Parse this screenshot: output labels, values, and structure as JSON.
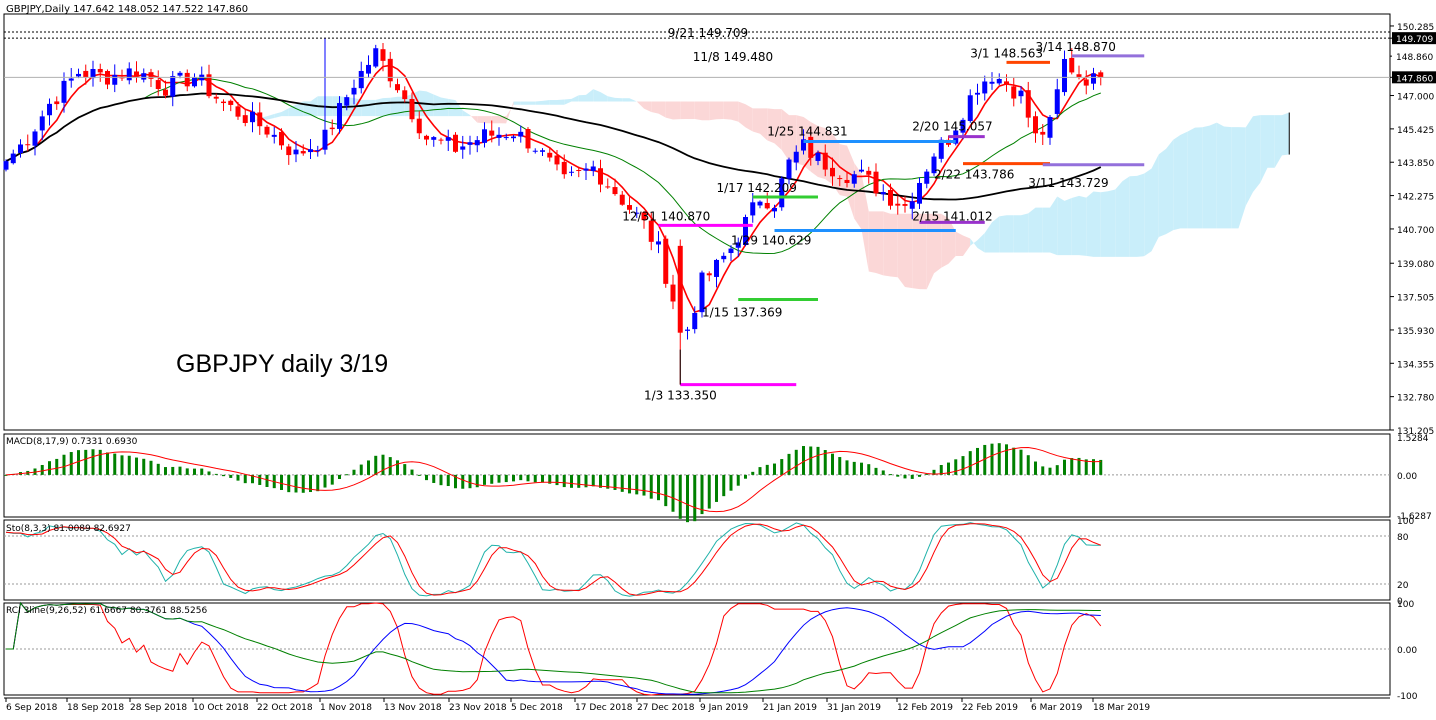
{
  "header": {
    "symbol_line": "GBPJPY,Daily  147.642 148.052 147.522 147.860"
  },
  "chart_data": [
    {
      "type": "candlestick",
      "panel": "price",
      "title": "GBPJPY daily 3/19",
      "ylim": [
        131.205,
        150.85
      ],
      "y_ticks": [
        "150.285",
        "149.709",
        "148.860",
        "147.860",
        "147.000",
        "145.425",
        "143.850",
        "142.275",
        "140.700",
        "139.080",
        "137.505",
        "135.930",
        "134.355",
        "132.780",
        "131.205"
      ],
      "current_price": "147.860",
      "x_tick_labels": [
        "6 Sep 2018",
        "18 Sep 2018",
        "28 Sep 2018",
        "10 Oct 2018",
        "22 Oct 2018",
        "1 Nov 2018",
        "13 Nov 2018",
        "23 Nov 2018",
        "5 Dec 2018",
        "17 Dec 2018",
        "27 Dec 2018",
        "9 Jan 2019",
        "21 Jan 2019",
        "31 Jan 2019",
        "12 Feb 2019",
        "22 Feb 2019",
        "6 Mar 2019",
        "18 Mar 2019"
      ],
      "close_anchors": [
        [
          0,
          143.9
        ],
        [
          3,
          145.0
        ],
        [
          6,
          146.6
        ],
        [
          10,
          148.1
        ],
        [
          14,
          147.9
        ],
        [
          18,
          148.2
        ],
        [
          22,
          147.4
        ],
        [
          26,
          147.9
        ],
        [
          30,
          146.6
        ],
        [
          33,
          146.0
        ],
        [
          36,
          145.4
        ],
        [
          40,
          144.2
        ],
        [
          44,
          145.0
        ],
        [
          48,
          147.6
        ],
        [
          51,
          149.0
        ],
        [
          54,
          147.5
        ],
        [
          58,
          145.0
        ],
        [
          62,
          144.5
        ],
        [
          66,
          145.1
        ],
        [
          70,
          145.3
        ],
        [
          73,
          144.6
        ],
        [
          77,
          142.9
        ],
        [
          81,
          143.6
        ],
        [
          85,
          142.1
        ],
        [
          88,
          140.9
        ],
        [
          90,
          139.7
        ],
        [
          92,
          137.4
        ],
        [
          94,
          136.0
        ],
        [
          96,
          138.2
        ],
        [
          98,
          138.9
        ],
        [
          100,
          139.8
        ],
        [
          102,
          141.0
        ],
        [
          104,
          142.2
        ],
        [
          106,
          142.0
        ],
        [
          108,
          143.8
        ],
        [
          110,
          144.6
        ],
        [
          112,
          144.0
        ],
        [
          114,
          143.6
        ],
        [
          116,
          143.3
        ],
        [
          118,
          143.2
        ],
        [
          120,
          142.7
        ],
        [
          122,
          142.2
        ],
        [
          124,
          141.8
        ],
        [
          126,
          143.0
        ],
        [
          128,
          144.3
        ],
        [
          130,
          145.0
        ],
        [
          132,
          146.3
        ],
        [
          134,
          147.5
        ],
        [
          136,
          148.0
        ],
        [
          138,
          147.6
        ],
        [
          140,
          147.0
        ],
        [
          142,
          145.0
        ],
        [
          144,
          145.6
        ],
        [
          146,
          148.6
        ],
        [
          148,
          148.0
        ],
        [
          150,
          147.7
        ],
        [
          151,
          147.86
        ]
      ],
      "special_closes": {
        "93": 135.8
      },
      "special_lows": {
        "93": 133.35
      },
      "special_highs": {
        "44": 149.709,
        "52": 149.48,
        "146": 148.87
      },
      "ichimoku": {
        "tenkan_period": 9,
        "kijun_period": 26,
        "senkou_b_period": 52,
        "displacement": 26
      },
      "moving_averages": [
        {
          "name": "SMA",
          "period": 5,
          "color": "#ff0000"
        },
        {
          "name": "SMA",
          "period": 20,
          "color": "#008000"
        },
        {
          "name": "SMA",
          "period": 60,
          "color": "#000000"
        }
      ],
      "levels": [
        {
          "label": "9/21 149.709",
          "value": 149.709,
          "style": "dotted"
        },
        {
          "label": "11/8 149.480",
          "value": 149.48,
          "style": "label-only"
        },
        {
          "label": "3/1 148.563",
          "value": 148.563,
          "color": "#ff4500"
        },
        {
          "label": "3/14 148.870",
          "value": 148.87,
          "color": "#9370db"
        },
        {
          "label": "1/25 144.831",
          "value": 144.831,
          "color": "#1e90ff"
        },
        {
          "label": "2/20 145.057",
          "value": 145.057,
          "color": "#9932cc"
        },
        {
          "label": "2/22 143.786",
          "value": 143.786,
          "color": "#ff4500"
        },
        {
          "label": "3/11 143.729",
          "value": 143.729,
          "color": "#9370db"
        },
        {
          "label": "1/17 142.209",
          "value": 142.209,
          "color": "#32cd32"
        },
        {
          "label": "12/31 140.870",
          "value": 140.87,
          "color": "#ff00ff"
        },
        {
          "label": "1/29 140.629",
          "value": 140.629,
          "color": "#1e90ff"
        },
        {
          "label": "2/15 141.012",
          "value": 141.012,
          "color": "#9932cc"
        },
        {
          "label": "1/15 137.369",
          "value": 137.369,
          "color": "#32cd32"
        },
        {
          "label": "1/3 133.350",
          "value": 133.35,
          "color": "#ff00ff"
        }
      ],
      "price_tag_label": "149.709"
    },
    {
      "type": "histogram",
      "panel": "macd",
      "title": "MACD(8,17,9) 0.7331 0.6930",
      "y_ticks": [
        "1.5284",
        "0.00",
        "-1.6287"
      ],
      "ylim": [
        -1.7,
        1.65
      ],
      "fast": 8,
      "slow": 17,
      "signal": 9
    },
    {
      "type": "line",
      "panel": "stochastic",
      "title": "Sto(8,3,3) 81.0089 82.6927",
      "y_ticks": [
        "100",
        "80",
        "20",
        "0"
      ],
      "ylim": [
        0,
        100
      ],
      "k_period": 8,
      "d_period": 3,
      "slowing": 3
    },
    {
      "type": "line",
      "panel": "rci",
      "title": "RCI 3line(9,26,52) 61.6667 80.3761 88.5256",
      "y_ticks": [
        "100",
        "0.00",
        "-100"
      ],
      "ylim": [
        -100,
        100
      ],
      "periods": [
        9,
        26,
        52
      ],
      "colors": [
        "#ff0000",
        "#0000ff",
        "#008000"
      ]
    }
  ]
}
